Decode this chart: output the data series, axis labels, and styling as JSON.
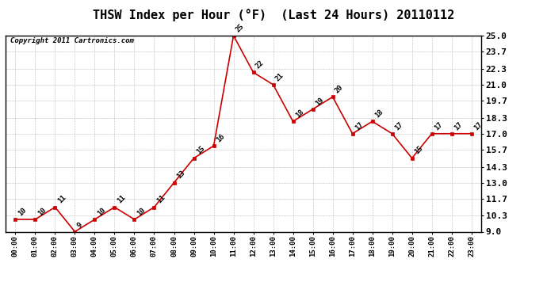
{
  "title": "THSW Index per Hour (°F)  (Last 24 Hours) 20110112",
  "copyright": "Copyright 2011 Cartronics.com",
  "hours": [
    "00:00",
    "01:00",
    "02:00",
    "03:00",
    "04:00",
    "05:00",
    "06:00",
    "07:00",
    "08:00",
    "09:00",
    "10:00",
    "11:00",
    "12:00",
    "13:00",
    "14:00",
    "15:00",
    "16:00",
    "17:00",
    "18:00",
    "19:00",
    "20:00",
    "21:00",
    "22:00",
    "23:00"
  ],
  "values": [
    10,
    10,
    11,
    9,
    10,
    11,
    10,
    11,
    13,
    15,
    16,
    25,
    22,
    21,
    18,
    19,
    20,
    17,
    18,
    17,
    15,
    17,
    17,
    17
  ],
  "ylim": [
    9.0,
    25.0
  ],
  "yticks": [
    9.0,
    10.3,
    11.7,
    13.0,
    14.3,
    15.7,
    17.0,
    18.3,
    19.7,
    21.0,
    22.3,
    23.7,
    25.0
  ],
  "line_color": "#cc0000",
  "marker_color": "#cc0000",
  "bg_color": "#ffffff",
  "grid_color": "#bbbbbb",
  "title_fontsize": 11,
  "label_fontsize": 6.5,
  "annotation_fontsize": 6.5,
  "copyright_fontsize": 6.5,
  "ytick_fontsize": 8
}
